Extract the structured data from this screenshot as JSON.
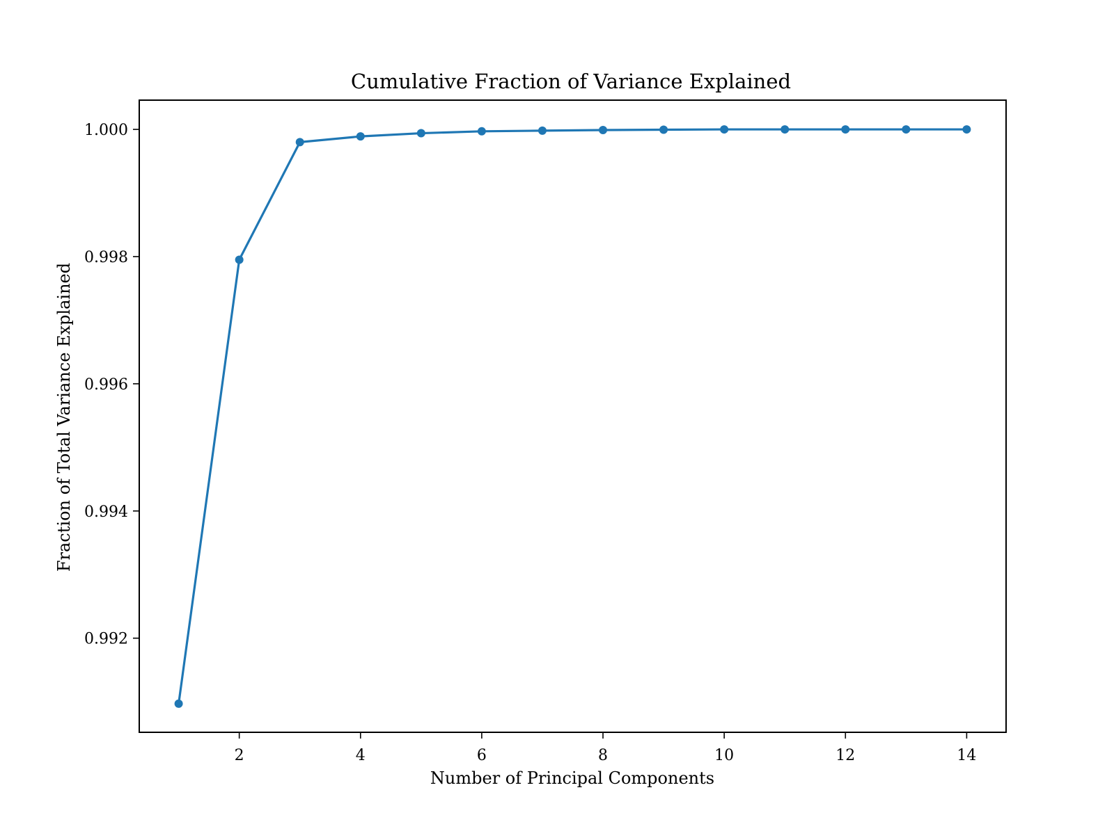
{
  "chart_data": {
    "type": "line",
    "title": "Cumulative Fraction of Variance Explained",
    "xlabel": "Number of Principal Components",
    "ylabel": "Fraction of Total Variance Explained",
    "x": [
      1,
      2,
      3,
      4,
      5,
      6,
      7,
      8,
      9,
      10,
      11,
      12,
      13,
      14
    ],
    "series": [
      {
        "values": [
          0.99097,
          0.99795,
          0.9998,
          0.99989,
          0.99994,
          0.99997,
          0.99998,
          0.99999,
          0.999995,
          1.0,
          1.0,
          1.0,
          1.0,
          1.0
        ],
        "color": "#1f77b4",
        "marker": "circle"
      }
    ],
    "xlim": [
      0.35,
      14.65
    ],
    "ylim": [
      0.99052,
      1.00046
    ],
    "xticks": [
      2,
      4,
      6,
      8,
      10,
      12,
      14
    ],
    "xtick_labels": [
      "2",
      "4",
      "6",
      "8",
      "10",
      "12",
      "14"
    ],
    "yticks": [
      0.992,
      0.994,
      0.996,
      0.998,
      1.0
    ],
    "ytick_labels": [
      "0.992",
      "0.994",
      "0.996",
      "0.998",
      "1.000"
    ],
    "grid": false,
    "legend": "none"
  }
}
